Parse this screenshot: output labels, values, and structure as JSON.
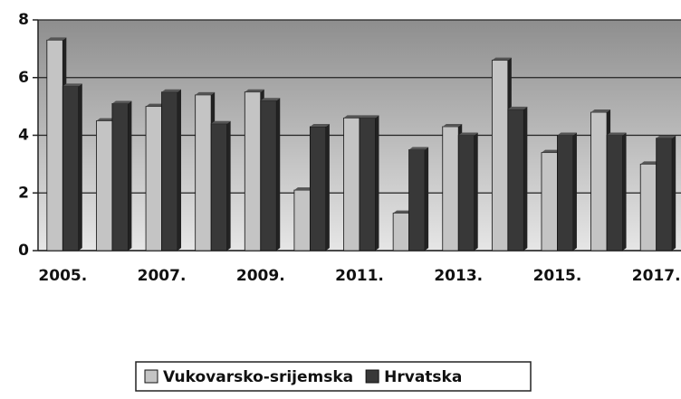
{
  "chart_data": {
    "type": "bar",
    "categories": [
      "2005.",
      null,
      "2007.",
      null,
      "2009.",
      null,
      "2011.",
      null,
      "2013.",
      null,
      "2015.",
      null,
      "2017."
    ],
    "series": [
      {
        "name": "Vukovarsko-srijemska",
        "color": "#c4c4c4",
        "values": [
          7.3,
          4.5,
          5.0,
          5.4,
          5.5,
          2.1,
          4.6,
          1.3,
          4.3,
          6.6,
          3.4,
          4.8,
          3.0
        ]
      },
      {
        "name": "Hrvatska",
        "color": "#383838",
        "values": [
          5.7,
          5.1,
          5.5,
          4.4,
          5.2,
          4.3,
          4.6,
          3.5,
          4.0,
          4.9,
          4.0,
          4.0,
          3.9
        ]
      }
    ],
    "ylim": [
      0,
      8
    ],
    "yticks": [
      0,
      2,
      4,
      6,
      8
    ],
    "grid": true,
    "legend": "bottom"
  }
}
